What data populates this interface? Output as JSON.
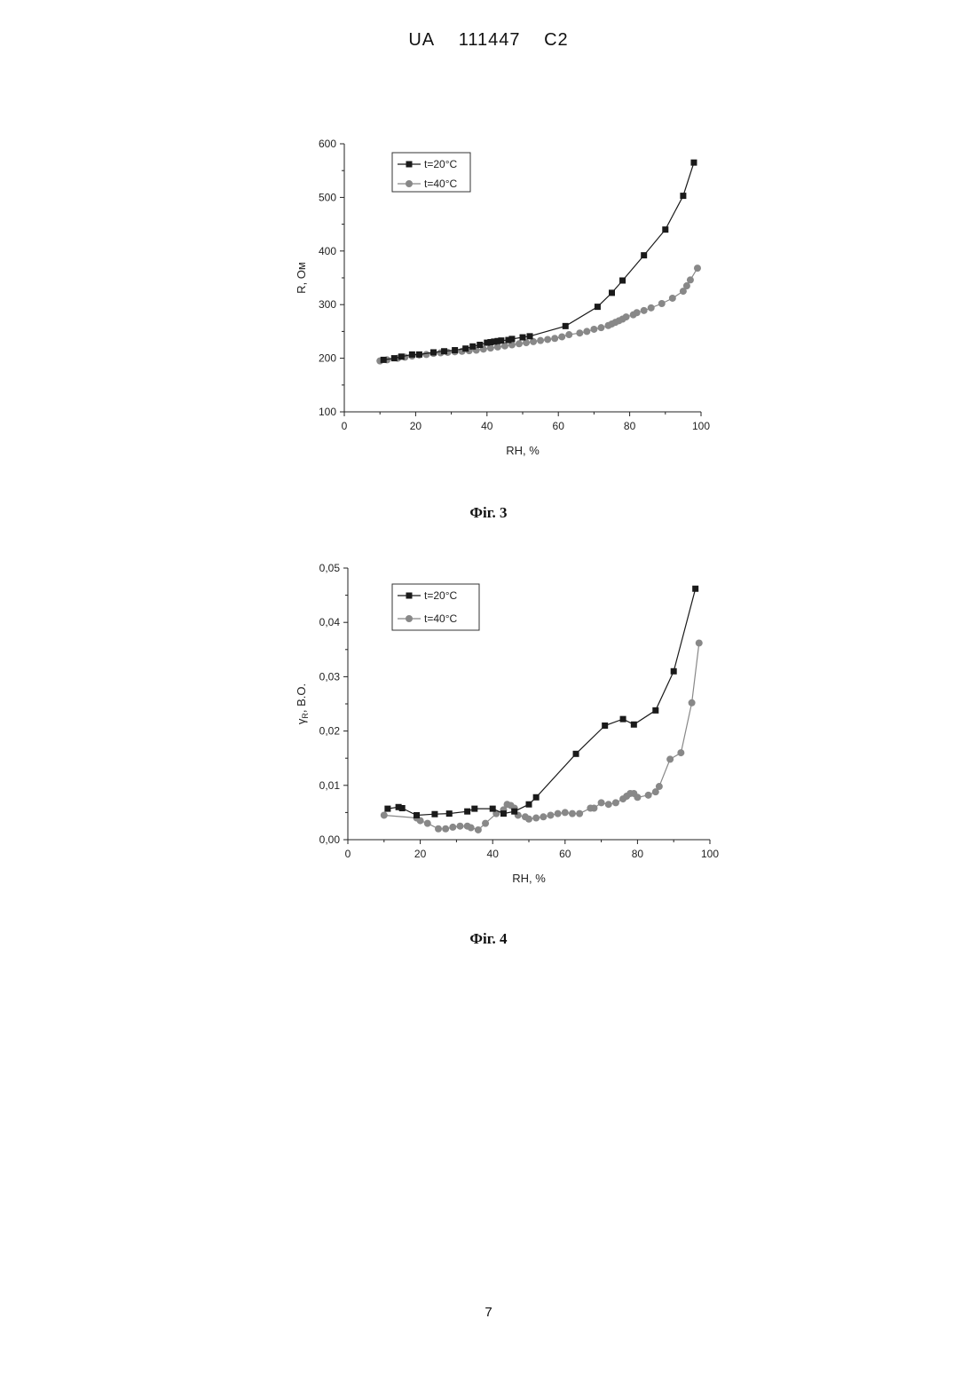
{
  "header": {
    "country": "UA",
    "number": "111447",
    "kind": "C2"
  },
  "figures": [
    {
      "caption": "Фіг. 3"
    },
    {
      "caption": "Фіг. 4"
    }
  ],
  "page_number": "7",
  "chart_data": [
    {
      "type": "line",
      "xlabel": "RH, %",
      "ylabel": "R, Ом",
      "xlim": [
        0,
        100
      ],
      "ylim": [
        100,
        600
      ],
      "xticks": [
        0,
        20,
        40,
        60,
        80,
        100
      ],
      "yticks": [
        100,
        200,
        300,
        400,
        500,
        600
      ],
      "xtick_labels": [
        "0",
        "20",
        "40",
        "60",
        "80",
        "100"
      ],
      "ytick_labels": [
        "100",
        "200",
        "300",
        "400",
        "500",
        "600"
      ],
      "legend_position": "top-left",
      "grid": false,
      "series": [
        {
          "name": "t=20°C",
          "marker": "square",
          "color": "#1a1a1a",
          "x": [
            11,
            14,
            16,
            19,
            21,
            25,
            28,
            31,
            34,
            36,
            38,
            40,
            41,
            42,
            43,
            44,
            46,
            47,
            50,
            52,
            62,
            71,
            75,
            78,
            84,
            90,
            95,
            98
          ],
          "y": [
            197,
            200,
            203,
            207,
            207,
            211,
            213,
            215,
            218,
            222,
            225,
            229,
            230,
            231,
            232,
            233,
            234,
            236,
            239,
            241,
            260,
            296,
            322,
            345,
            392,
            440,
            503,
            565
          ]
        },
        {
          "name": "t=40°C",
          "marker": "circle",
          "color": "#888888",
          "x": [
            10,
            12,
            15,
            17,
            19,
            21,
            23,
            25,
            27,
            29,
            31,
            33,
            35,
            37,
            39,
            41,
            43,
            45,
            47,
            49,
            51,
            53,
            55,
            57,
            59,
            61,
            63,
            66,
            68,
            70,
            72,
            74,
            75,
            76,
            77,
            78,
            79,
            81,
            82,
            84,
            86,
            89,
            92,
            95,
            96,
            97,
            99
          ],
          "y": [
            195,
            197,
            200,
            202,
            204,
            206,
            207,
            209,
            210,
            211,
            212,
            213,
            214,
            215,
            217,
            219,
            221,
            223,
            225,
            227,
            229,
            231,
            233,
            235,
            237,
            240,
            244,
            247,
            250,
            254,
            257,
            261,
            264,
            267,
            270,
            273,
            277,
            281,
            285,
            289,
            294,
            302,
            312,
            325,
            335,
            346,
            368
          ]
        }
      ]
    },
    {
      "type": "line",
      "xlabel": "RH, %",
      "ylabel": "γ_R, В.О.",
      "ylabel_main": "γ",
      "ylabel_sub": "R",
      "ylabel_rest": ", В.О.",
      "xlim": [
        0,
        100
      ],
      "ylim": [
        0,
        0.05
      ],
      "xticks": [
        0,
        20,
        40,
        60,
        80,
        100
      ],
      "yticks": [
        0,
        0.01,
        0.02,
        0.03,
        0.04,
        0.05
      ],
      "xtick_labels": [
        "0",
        "20",
        "40",
        "60",
        "80",
        "100"
      ],
      "ytick_labels": [
        "0,00",
        "0,01",
        "0,02",
        "0,03",
        "0,04",
        "0,05"
      ],
      "legend_position": "top-left",
      "grid": false,
      "series": [
        {
          "name": "t=20°C",
          "marker": "square",
          "color": "#1a1a1a",
          "x": [
            11,
            14,
            15,
            19,
            24,
            28,
            33,
            35,
            40,
            43,
            46,
            50,
            52,
            63,
            71,
            76,
            79,
            85,
            90,
            96
          ],
          "y": [
            0.0057,
            0.006,
            0.0058,
            0.0045,
            0.0047,
            0.0048,
            0.0052,
            0.0057,
            0.0057,
            0.0048,
            0.0052,
            0.0065,
            0.0078,
            0.0158,
            0.021,
            0.0222,
            0.0212,
            0.0238,
            0.031,
            0.0462
          ]
        },
        {
          "name": "t=40°C",
          "marker": "circle",
          "color": "#888888",
          "x": [
            10,
            19,
            20,
            22,
            25,
            27,
            29,
            31,
            33,
            34,
            36,
            38,
            41,
            43,
            44,
            45,
            46,
            47,
            49,
            50,
            52,
            54,
            56,
            58,
            60,
            62,
            64,
            67,
            68,
            70,
            72,
            74,
            76,
            77,
            78,
            79,
            80,
            83,
            85,
            86,
            89,
            92,
            95,
            97
          ],
          "y": [
            0.0045,
            0.004,
            0.0035,
            0.003,
            0.002,
            0.002,
            0.0023,
            0.0025,
            0.0025,
            0.0022,
            0.0018,
            0.003,
            0.0048,
            0.0055,
            0.0065,
            0.0063,
            0.0058,
            0.0045,
            0.0042,
            0.0038,
            0.004,
            0.0042,
            0.0045,
            0.0048,
            0.005,
            0.0048,
            0.0048,
            0.0058,
            0.0058,
            0.0068,
            0.0065,
            0.0068,
            0.0075,
            0.008,
            0.0085,
            0.0085,
            0.0078,
            0.0082,
            0.0088,
            0.0098,
            0.0148,
            0.016,
            0.0252,
            0.0362
          ]
        }
      ]
    }
  ]
}
